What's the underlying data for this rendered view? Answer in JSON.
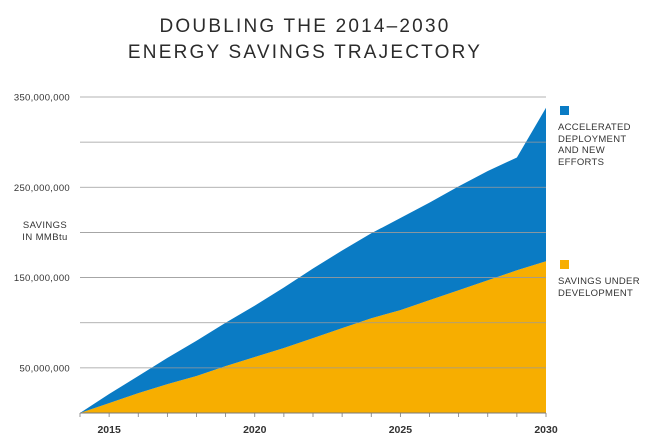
{
  "title_line1": "DOUBLING THE 2014–2030",
  "title_line2": "ENERGY SAVINGS TRAJECTORY",
  "chart_data": {
    "type": "area",
    "stacked": true,
    "title": "DOUBLING THE 2014–2030 ENERGY SAVINGS TRAJECTORY",
    "ylabel": "SAVINGS IN MMBtu",
    "xlabel": "",
    "x": [
      2014,
      2015,
      2016,
      2017,
      2018,
      2019,
      2020,
      2021,
      2022,
      2023,
      2024,
      2025,
      2026,
      2027,
      2028,
      2029,
      2030
    ],
    "xticks": [
      {
        "value": 2015,
        "label": "2015"
      },
      {
        "value": 2020,
        "label": "2020"
      },
      {
        "value": 2025,
        "label": "2025"
      },
      {
        "value": 2030,
        "label": "2030"
      }
    ],
    "xlim": [
      2014,
      2030
    ],
    "ylim": [
      0,
      350000000
    ],
    "yticks": [
      {
        "value": 50000000,
        "label": "50,000,000"
      },
      {
        "value": 150000000,
        "label": "150,000,000"
      },
      {
        "value": 250000000,
        "label": "250,000,000"
      },
      {
        "value": 350000000,
        "label": "350,000,000"
      }
    ],
    "gridlines": [
      50000000,
      100000000,
      150000000,
      200000000,
      250000000,
      300000000,
      350000000
    ],
    "legend_position": "right",
    "series": [
      {
        "name": "SAVINGS UNDER DEVELOPMENT",
        "color": "#F7AE00",
        "values": [
          0,
          11000000,
          22000000,
          32000000,
          41000000,
          52000000,
          62000000,
          72000000,
          83000000,
          94000000,
          105000000,
          114000000,
          125000000,
          136000000,
          147000000,
          158000000,
          168000000
        ]
      },
      {
        "name": "ACCELERATED DEPLOYMENT AND NEW EFFORTS",
        "color": "#0A7BC4",
        "values": [
          0,
          10000000,
          19000000,
          29000000,
          39000000,
          48000000,
          57000000,
          67000000,
          77000000,
          86000000,
          94000000,
          102000000,
          108000000,
          115000000,
          121000000,
          125000000,
          170000000
        ]
      }
    ],
    "totals": [
      0,
      21000000,
      41000000,
      61000000,
      80000000,
      100000000,
      119000000,
      139000000,
      160000000,
      180000000,
      199000000,
      216000000,
      233000000,
      251000000,
      268000000,
      283000000,
      338000000
    ]
  },
  "legend": [
    {
      "label_lines": [
        "ACCELERATED",
        "DEPLOYMENT",
        "AND NEW",
        "EFFORTS"
      ],
      "color": "#0A7BC4"
    },
    {
      "label_lines": [
        "SAVINGS UNDER",
        "DEVELOPMENT"
      ],
      "color": "#F7AE00"
    }
  ],
  "ylabel_lines": [
    "SAVINGS",
    "IN MMBtu"
  ]
}
